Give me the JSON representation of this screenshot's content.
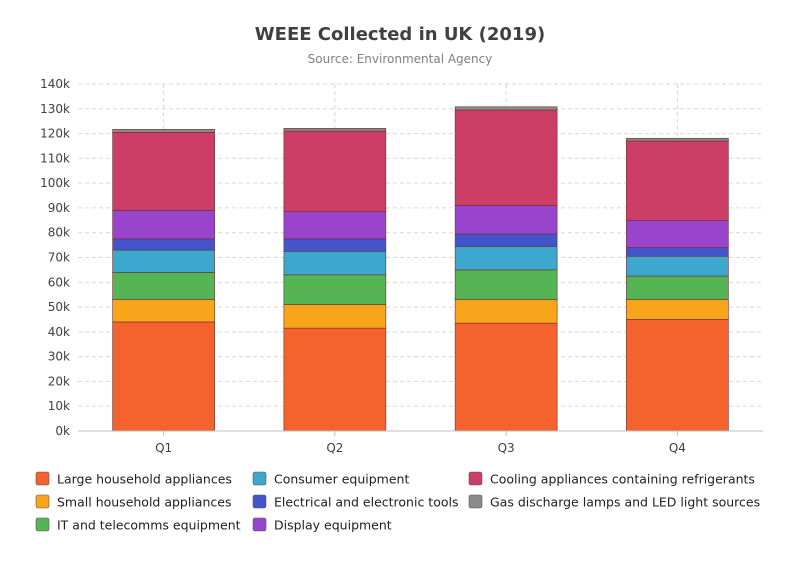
{
  "chart_data": {
    "type": "bar",
    "stacked": true,
    "title": "WEEE Collected in UK (2019)",
    "subtitle": "Source: Environmental Agency",
    "xlabel": "",
    "ylabel": "",
    "categories": [
      "Q1",
      "Q2",
      "Q3",
      "Q4"
    ],
    "ylim": [
      0,
      140000
    ],
    "yticks": [
      0,
      10000,
      20000,
      30000,
      40000,
      50000,
      60000,
      70000,
      80000,
      90000,
      100000,
      110000,
      120000,
      130000,
      140000
    ],
    "ytick_labels": [
      "0k",
      "10k",
      "20k",
      "30k",
      "40k",
      "50k",
      "60k",
      "70k",
      "80k",
      "90k",
      "100k",
      "110k",
      "120k",
      "130k",
      "140k"
    ],
    "grid": true,
    "legend_position": "bottom",
    "series": [
      {
        "name": "Large household appliances",
        "color": "#f4622d",
        "values": [
          44000,
          41500,
          43500,
          45000
        ]
      },
      {
        "name": "Small household appliances",
        "color": "#f9a51b",
        "values": [
          9000,
          9500,
          9500,
          8000
        ]
      },
      {
        "name": "IT and telecomms equipment",
        "color": "#55b555",
        "values": [
          11000,
          12000,
          12000,
          9500
        ]
      },
      {
        "name": "Consumer equipment",
        "color": "#3ca8cd",
        "values": [
          9000,
          9500,
          9500,
          8000
        ]
      },
      {
        "name": "Electrical and electronic tools",
        "color": "#4455cc",
        "values": [
          4500,
          5000,
          5000,
          3500
        ]
      },
      {
        "name": "Display equipment",
        "color": "#9944cc",
        "values": [
          11500,
          11000,
          11500,
          11000
        ]
      },
      {
        "name": "Cooling appliances containing refrigerants",
        "color": "#cc3e66",
        "values": [
          31500,
          32500,
          38500,
          32000
        ]
      },
      {
        "name": "Gas discharge lamps and LED light sources",
        "color": "#8a8a8a",
        "values": [
          1200,
          1100,
          1300,
          1100
        ]
      }
    ]
  }
}
